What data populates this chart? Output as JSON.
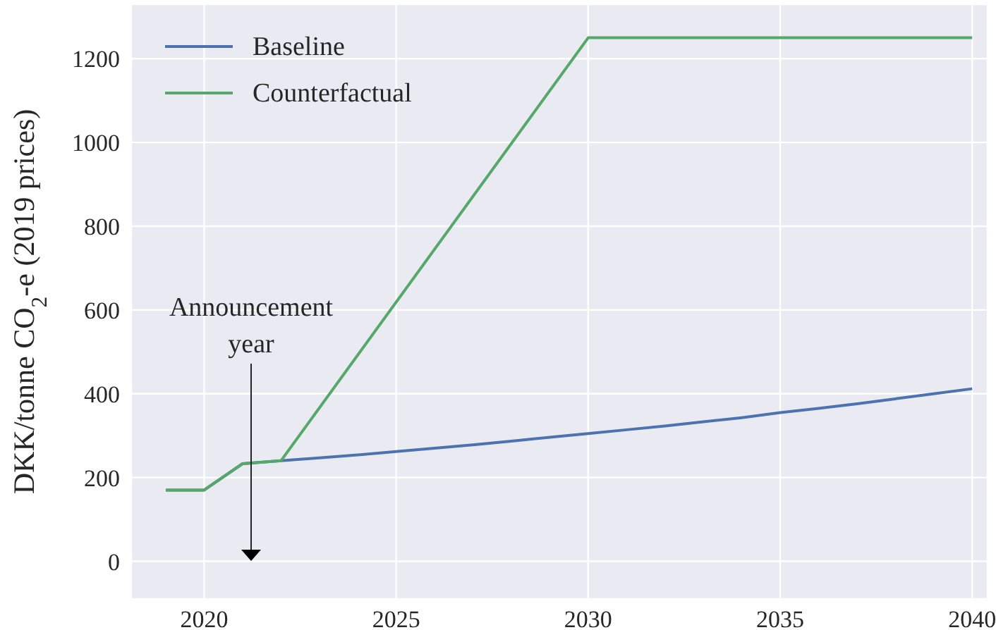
{
  "chart_data": {
    "type": "line",
    "ylabel": "DKK/tonne CO$_{2}$-e (2019 prices)",
    "xlim": [
      2018.1,
      2040.4
    ],
    "xticks": [
      2020,
      2025,
      2030,
      2035,
      2040
    ],
    "ylim": [
      -90,
      1330
    ],
    "yticks": [
      0,
      200,
      400,
      600,
      800,
      1000,
      1200
    ],
    "grid": true,
    "legend": "top left",
    "marker": "none",
    "line_style": "solid",
    "annotations": [
      "Announcement year"
    ],
    "series": [
      {
        "name": "Baseline",
        "color": "#4c72b0",
        "x": [
          2019,
          2020,
          2021,
          2022,
          2023,
          2024,
          2025,
          2026,
          2027,
          2028,
          2029,
          2030,
          2031,
          2032,
          2033,
          2034,
          2035,
          2036,
          2037,
          2038,
          2039,
          2040
        ],
        "values": [
          170,
          170,
          233,
          240,
          247,
          254,
          262,
          270,
          278,
          287,
          296,
          305,
          314,
          323,
          333,
          343,
          355,
          365,
          376,
          388,
          400,
          412
        ]
      },
      {
        "name": "Counterfactual",
        "color": "#55a868",
        "x": [
          2019,
          2020,
          2021,
          2022,
          2030,
          2040
        ],
        "values": [
          170,
          170,
          233,
          240,
          1250,
          1250
        ]
      }
    ]
  }
}
